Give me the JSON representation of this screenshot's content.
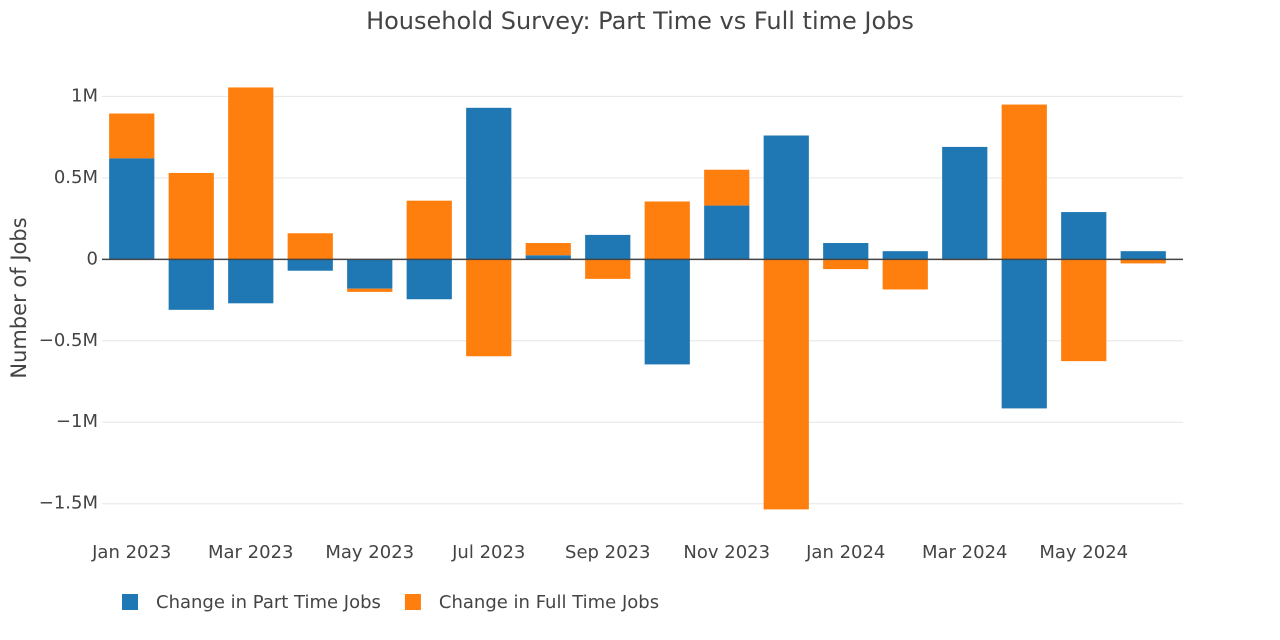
{
  "chart_data": {
    "type": "bar",
    "barmode": "relative",
    "title": "Household Survey: Part Time vs Full time Jobs",
    "y_label": "Number of Jobs",
    "categories": [
      "Jan 2023",
      null,
      "Mar 2023",
      null,
      "May 2023",
      null,
      "Jul 2023",
      null,
      "Sep 2023",
      null,
      "Nov 2023",
      null,
      "Jan 2024",
      null,
      "Mar 2024",
      null,
      "May 2024",
      null
    ],
    "series": [
      {
        "name": "Change in Part Time Jobs",
        "color": "#1f77b4",
        "values": [
          620000,
          -310000,
          -270000,
          -70000,
          -180000,
          -245000,
          930000,
          25000,
          150000,
          -645000,
          330000,
          760000,
          100000,
          50000,
          690000,
          -915000,
          290000,
          50000
        ]
      },
      {
        "name": "Change in Full Time Jobs",
        "color": "#ff7f0e",
        "values": [
          275000,
          530000,
          1055000,
          160000,
          -20000,
          360000,
          -595000,
          75000,
          -120000,
          355000,
          220000,
          -1535000,
          -60000,
          -185000,
          -5000,
          950000,
          -625000,
          -25000
        ]
      }
    ],
    "ylim": [
      -1600000,
      1070000
    ],
    "yticks": [
      {
        "value": 1000000,
        "label": "1M"
      },
      {
        "value": 500000,
        "label": "0.5M"
      },
      0,
      {
        "value": -500000,
        "label": "−0.5M"
      },
      {
        "value": -1000000,
        "label": "−1M"
      },
      {
        "value": -1500000,
        "label": "−1.5M"
      }
    ],
    "grid": true,
    "legend": "bottom"
  }
}
